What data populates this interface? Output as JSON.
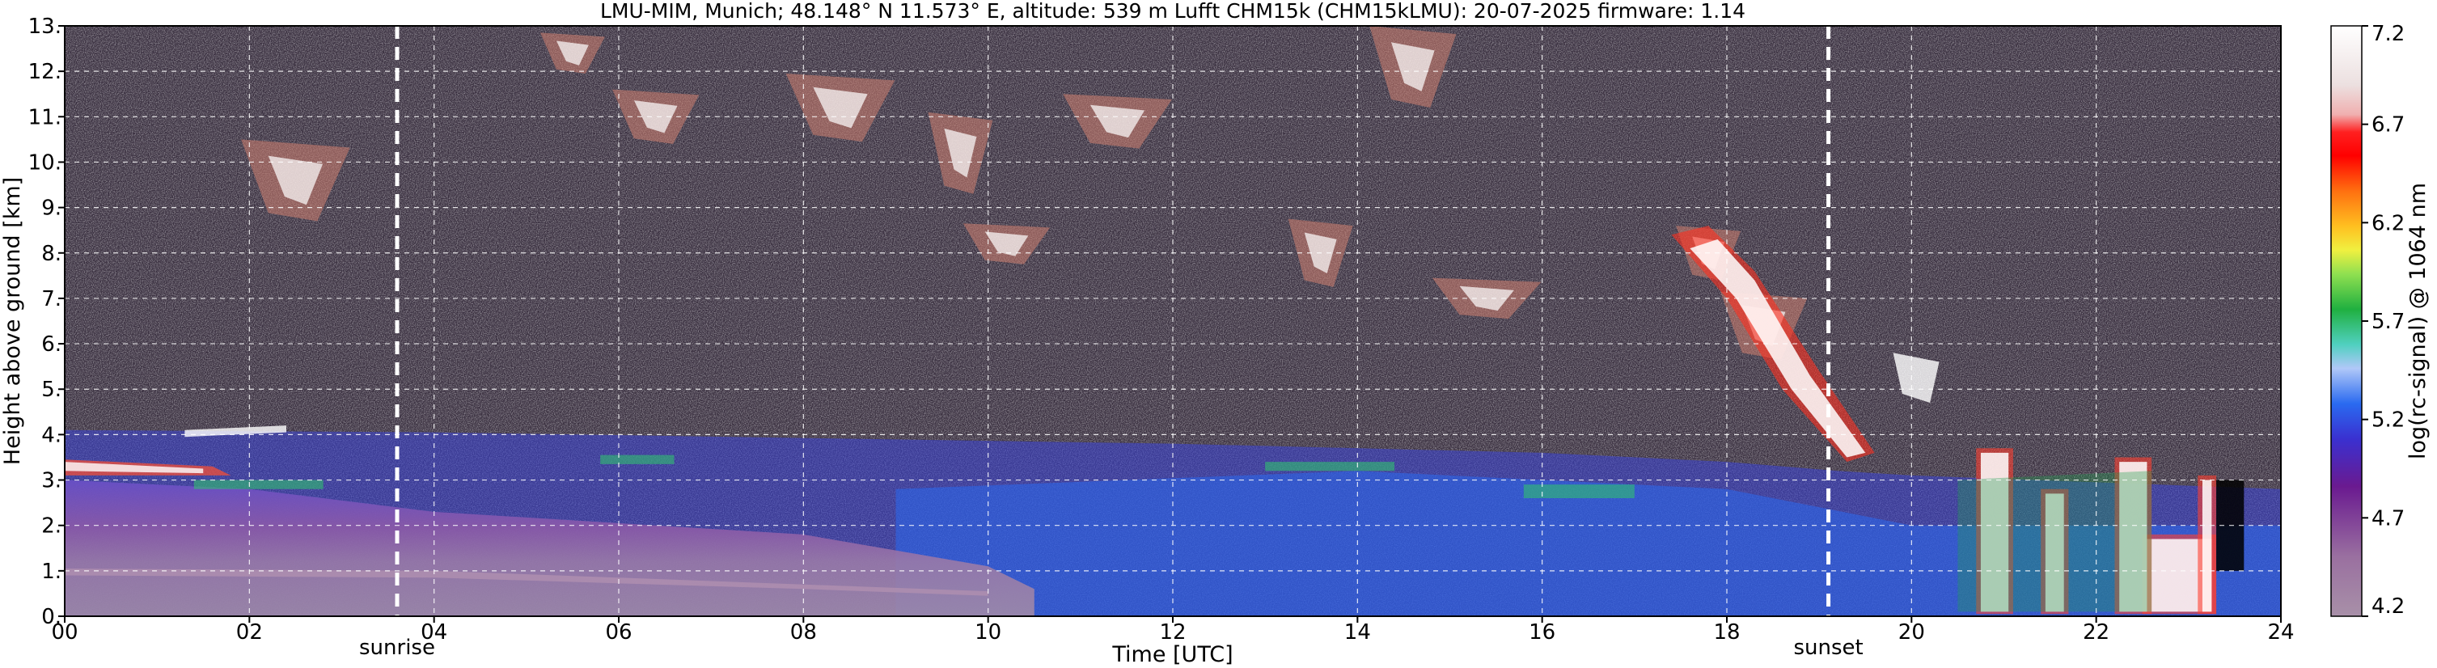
{
  "chart_data": {
    "type": "heatmap",
    "title": "LMU-MIM, Munich; 48.148° N 11.573° E, altitude: 539 m    Lufft CHM15k (CHM15kLMU): 20-07-2025    firmware: 1.14",
    "xlabel": "Time [UTC]",
    "ylabel": "Height above ground [km]",
    "colorbar_label": "log(rc-signal) @ 1064 nm",
    "xlim": [
      0,
      24
    ],
    "ylim": [
      0,
      13
    ],
    "x_tick_labels": [
      "00",
      "02",
      "04",
      "06",
      "08",
      "10",
      "12",
      "14",
      "16",
      "18",
      "20",
      "22",
      "24"
    ],
    "y_tick_labels": [
      "0.",
      "1.",
      "2.",
      "3.",
      "4.",
      "5.",
      "6.",
      "7.",
      "8.",
      "9.",
      "10.",
      "11.",
      "12.",
      "13."
    ],
    "colorbar_range": [
      4.2,
      7.2
    ],
    "colorbar_tick_labels": [
      "4.2",
      "4.7",
      "5.2",
      "5.7",
      "6.2",
      "6.7",
      "7.2"
    ],
    "grid": true,
    "markers": [
      {
        "label": "sunrise",
        "time": 3.6
      },
      {
        "label": "sunset",
        "time": 19.1
      }
    ],
    "colors": {
      "background_noise": "#3a3040",
      "boundary_layer": "#8a6fa0",
      "aerosol": "#3050e0",
      "cloud": "#ffffff"
    }
  }
}
